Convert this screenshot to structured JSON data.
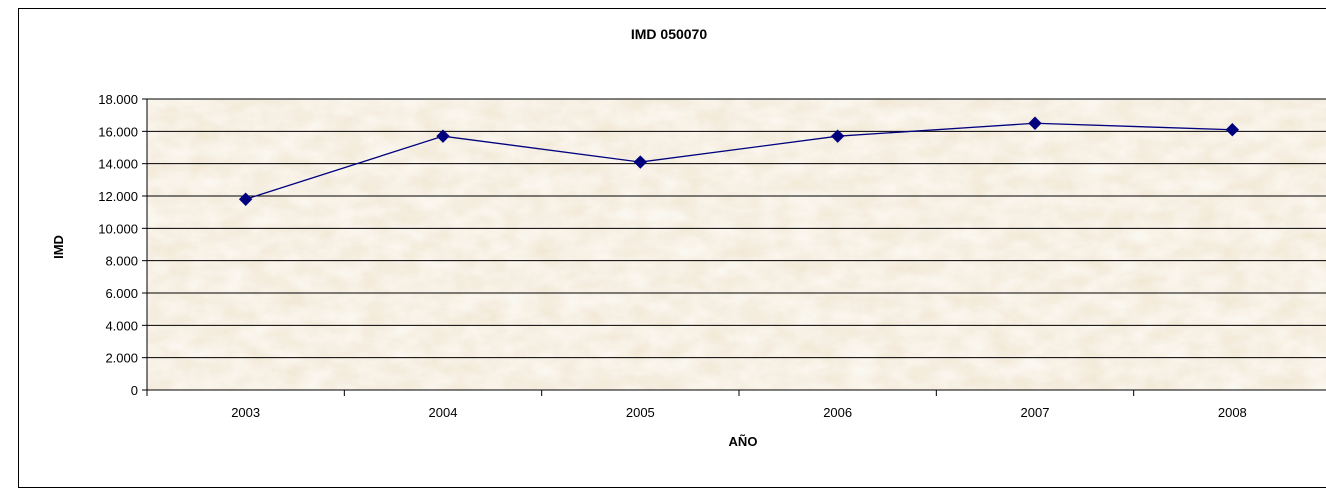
{
  "chart_data": {
    "type": "line",
    "title": "IMD 050070",
    "xlabel": "AÑO",
    "ylabel": "IMD",
    "categories": [
      "2003",
      "2004",
      "2005",
      "2006",
      "2007",
      "2008"
    ],
    "y_tick_labels": [
      "0",
      "2.000",
      "4.000",
      "6.000",
      "8.000",
      "10.000",
      "12.000",
      "14.000",
      "16.000",
      "18.000"
    ],
    "ylim": [
      0,
      18000
    ],
    "y_step": 2000,
    "grid": true,
    "series": [
      {
        "values": [
          11800,
          15700,
          14100,
          15700,
          16500,
          16100
        ],
        "color": "#00007f",
        "marker": "diamond"
      }
    ],
    "plot_background": "#e8d3a4"
  }
}
